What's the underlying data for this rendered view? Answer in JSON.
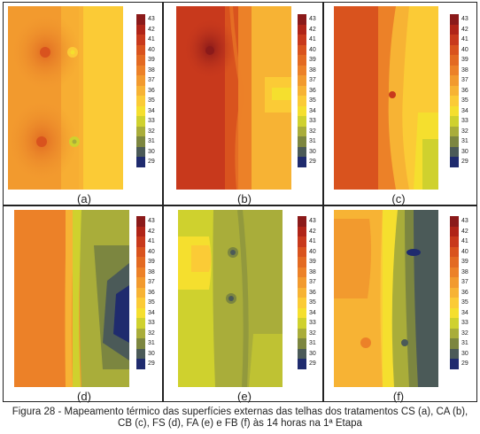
{
  "figure": {
    "caption_line1": "Figura 28 - Mapeamento térmico das superfícies externas das telhas dos tratamentos CS (a), CA (b),",
    "caption_line2": "CB (c), FS (d), FA (e) e FB (f) às 14 horas na 1ª Etapa"
  },
  "panels": [
    {
      "label": "(a)"
    },
    {
      "label": "(b)"
    },
    {
      "label": "(c)"
    },
    {
      "label": "(d)"
    },
    {
      "label": "(e)"
    },
    {
      "label": "(f)"
    }
  ],
  "colorbar": {
    "ticks": [
      "43",
      "42",
      "41",
      "40",
      "39",
      "38",
      "37",
      "36",
      "35",
      "34",
      "33",
      "32",
      "31",
      "30",
      "29"
    ],
    "colors": [
      "#8b1a1a",
      "#b02418",
      "#c8391c",
      "#d9531e",
      "#e36a22",
      "#ec8128",
      "#f29a2e",
      "#f7b334",
      "#fbcb36",
      "#f5df2e",
      "#cfd12e",
      "#a9ad3a",
      "#7c8640",
      "#4b5a58",
      "#1f2b6e"
    ]
  }
}
